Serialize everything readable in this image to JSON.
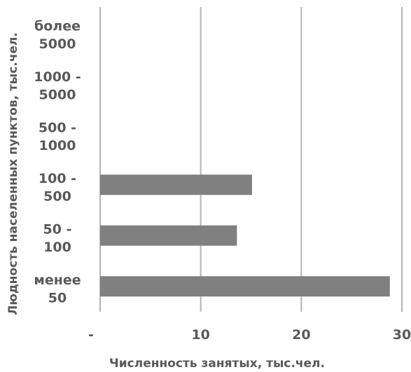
{
  "chart_data": {
    "type": "bar",
    "orientation": "horizontal",
    "categories": [
      [
        "менее",
        "50"
      ],
      [
        "50 -",
        "100"
      ],
      [
        "100 -",
        "500"
      ],
      [
        "500 -",
        "1000"
      ],
      [
        "1000 -",
        "5000"
      ],
      [
        "более",
        "5000"
      ]
    ],
    "values": [
      28.8,
      13.6,
      15.1,
      0,
      0,
      0
    ],
    "xlim": [
      0,
      30
    ],
    "x_ticks": [
      0,
      10,
      20,
      30
    ],
    "x_tick_labels": [
      "-",
      "10",
      "20",
      "30"
    ],
    "xlabel": "Численность занятых, тыс.чел.",
    "ylabel": "Людность населенных пунктов, тыс.чел.",
    "grid": "vertical",
    "bar_color": "#808080",
    "grid_color": "#b4b4b4",
    "text_color": "#595959"
  }
}
